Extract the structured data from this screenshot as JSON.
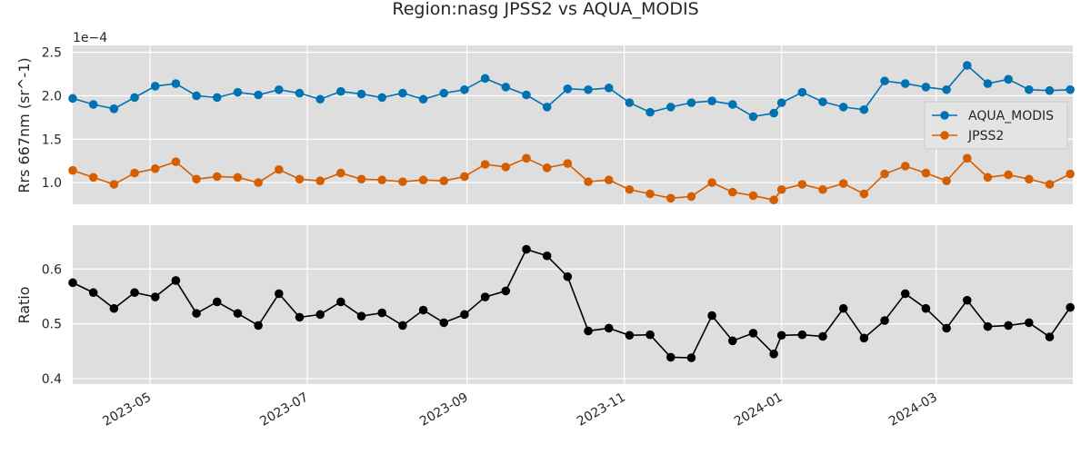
{
  "title": "Region:nasg JPSS2 vs AQUA_MODIS",
  "chart_data": [
    {
      "type": "line",
      "ylabel": "Rrs 667nm (sr^-1)",
      "offset_text": "1e−4",
      "yticks": [
        "1.0",
        "1.5",
        "2.0",
        "2.5"
      ],
      "ytick_values": [
        1.0,
        1.5,
        2.0,
        2.5
      ],
      "ylim": [
        0.75,
        2.58
      ],
      "grid": true,
      "legend_position": "center-right",
      "x": [
        "2023-04-01",
        "2023-04-09",
        "2023-04-17",
        "2023-04-25",
        "2023-05-03",
        "2023-05-11",
        "2023-05-19",
        "2023-05-27",
        "2023-06-04",
        "2023-06-12",
        "2023-06-20",
        "2023-06-28",
        "2023-07-06",
        "2023-07-14",
        "2023-07-22",
        "2023-07-30",
        "2023-08-07",
        "2023-08-15",
        "2023-08-23",
        "2023-08-31",
        "2023-09-08",
        "2023-09-16",
        "2023-09-24",
        "2023-10-02",
        "2023-10-10",
        "2023-10-18",
        "2023-10-26",
        "2023-11-03",
        "2023-11-11",
        "2023-11-19",
        "2023-11-27",
        "2023-12-05",
        "2023-12-13",
        "2023-12-21",
        "2023-12-29",
        "2024-01-01",
        "2024-01-09",
        "2024-01-17",
        "2024-01-25",
        "2024-02-02",
        "2024-02-10",
        "2024-02-18",
        "2024-02-26",
        "2024-03-05",
        "2024-03-13",
        "2024-03-21",
        "2024-03-29",
        "2024-04-06",
        "2024-04-14",
        "2024-04-22"
      ],
      "series": [
        {
          "name": "AQUA_MODIS",
          "color": "#0072b2",
          "values": [
            1.97,
            1.9,
            1.85,
            1.98,
            2.11,
            2.14,
            2.0,
            1.98,
            2.04,
            2.01,
            2.07,
            2.03,
            1.96,
            2.05,
            2.02,
            1.98,
            2.03,
            1.96,
            2.03,
            2.07,
            2.2,
            2.1,
            2.01,
            1.87,
            2.08,
            2.07,
            2.09,
            1.92,
            1.81,
            1.87,
            1.92,
            1.94,
            1.9,
            1.76,
            1.8,
            1.92,
            2.04,
            1.93,
            1.87,
            1.84,
            2.17,
            2.14,
            2.1,
            2.07,
            2.35,
            2.14,
            2.19,
            2.07,
            2.06,
            2.07
          ]
        },
        {
          "name": "JPSS2",
          "color": "#d55e00",
          "values": [
            1.14,
            1.06,
            0.98,
            1.11,
            1.16,
            1.24,
            1.04,
            1.07,
            1.06,
            1.0,
            1.15,
            1.04,
            1.02,
            1.11,
            1.04,
            1.03,
            1.01,
            1.03,
            1.02,
            1.07,
            1.21,
            1.18,
            1.28,
            1.17,
            1.22,
            1.01,
            1.03,
            0.92,
            0.87,
            0.82,
            0.84,
            1.0,
            0.89,
            0.85,
            0.8,
            0.92,
            0.98,
            0.92,
            0.99,
            0.87,
            1.1,
            1.19,
            1.11,
            1.02,
            1.28,
            1.06,
            1.09,
            1.04,
            0.98,
            1.1
          ]
        }
      ]
    },
    {
      "type": "line",
      "ylabel": "Ratio",
      "yticks": [
        "0.4",
        "0.5",
        "0.6"
      ],
      "ytick_values": [
        0.4,
        0.5,
        0.6
      ],
      "ylim": [
        0.39,
        0.68
      ],
      "grid": true,
      "xticks": [
        "2023-05",
        "2023-07",
        "2023-09",
        "2023-11",
        "2024-01",
        "2024-03"
      ],
      "xtick_values": [
        "2023-05-01",
        "2023-07-01",
        "2023-09-01",
        "2023-11-01",
        "2024-01-01",
        "2024-03-01"
      ],
      "xlim": [
        "2023-04-01",
        "2024-04-23"
      ],
      "series": [
        {
          "name": "",
          "color": "#000000",
          "values": [
            0.575,
            0.557,
            0.528,
            0.557,
            0.549,
            0.579,
            0.519,
            0.54,
            0.519,
            0.497,
            0.555,
            0.512,
            0.517,
            0.54,
            0.514,
            0.52,
            0.497,
            0.525,
            0.502,
            0.517,
            0.549,
            0.56,
            0.636,
            0.624,
            0.586,
            0.487,
            0.492,
            0.479,
            0.48,
            0.439,
            0.438,
            0.515,
            0.469,
            0.483,
            0.445,
            0.479,
            0.48,
            0.477,
            0.528,
            0.474,
            0.506,
            0.555,
            0.528,
            0.492,
            0.543,
            0.495,
            0.497,
            0.502,
            0.476,
            0.53
          ]
        }
      ]
    }
  ]
}
